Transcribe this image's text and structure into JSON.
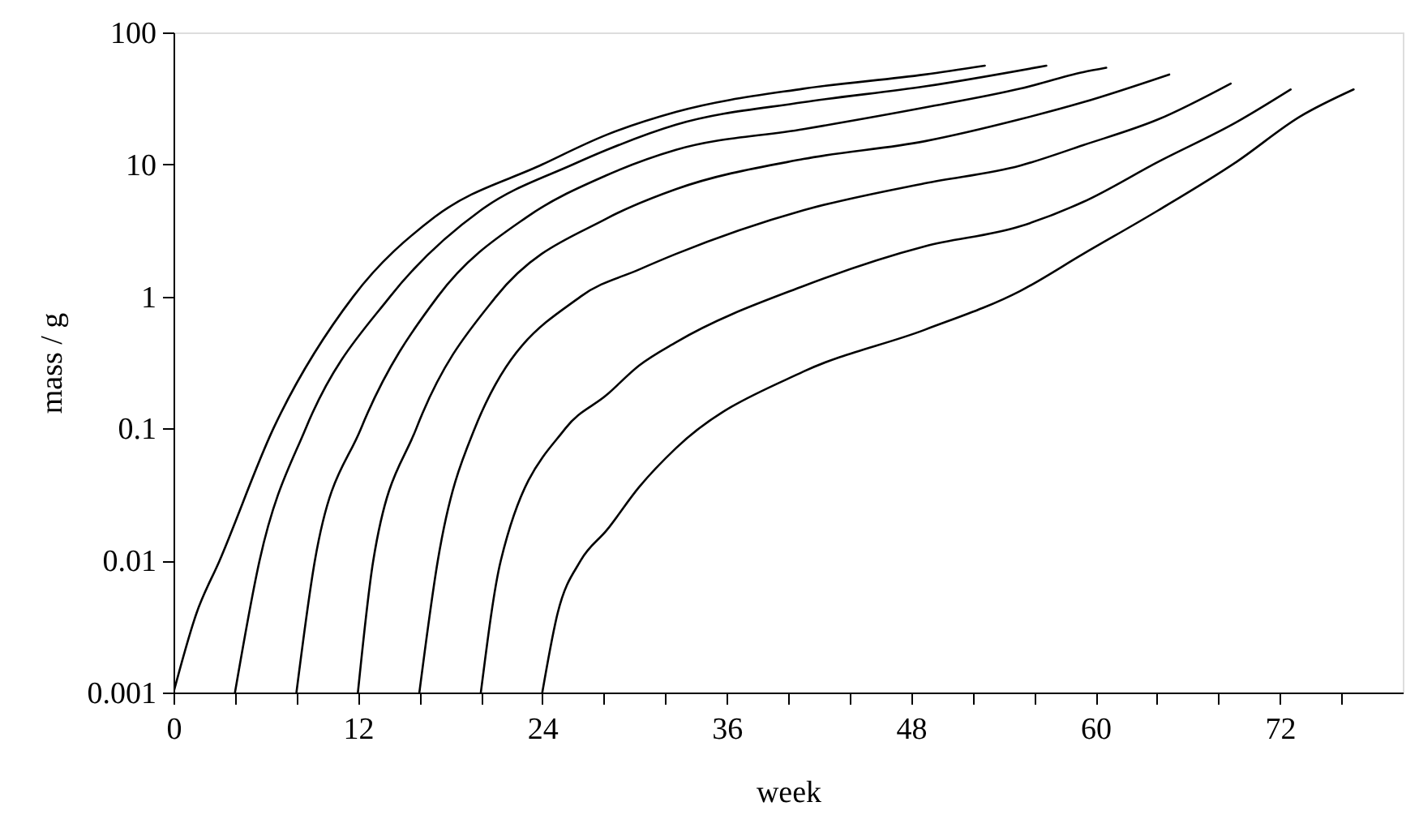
{
  "chart_data": {
    "type": "line",
    "xlabel": "week",
    "ylabel": "mass / g",
    "log": "y",
    "grid": false,
    "legend": false,
    "marker": "none",
    "line_style": "solid",
    "xlim": [
      0,
      80
    ],
    "ylim": [
      0.001,
      100
    ],
    "xticks": [
      0,
      {
        "value": 4,
        "label": null
      },
      {
        "value": 8,
        "label": null
      },
      12,
      {
        "value": 16,
        "label": null
      },
      {
        "value": 20,
        "label": null
      },
      24,
      {
        "value": 28,
        "label": null
      },
      {
        "value": 32,
        "label": null
      },
      36,
      {
        "value": 40,
        "label": null
      },
      {
        "value": 44,
        "label": null
      },
      48,
      {
        "value": 52,
        "label": null
      },
      {
        "value": 56,
        "label": null
      },
      60,
      {
        "value": 64,
        "label": null
      },
      {
        "value": 68,
        "label": null
      },
      72,
      {
        "value": 76,
        "label": null
      }
    ],
    "yticks": [
      0.001,
      0.01,
      0.1,
      1,
      10,
      100
    ],
    "series": [
      {
        "color": "#000000",
        "x": [
          0,
          1.5,
          3,
          6.5,
          11.7,
          17,
          24,
          28.2,
          32.7,
          41,
          48.9,
          52.8
        ],
        "values": [
          0.001,
          0.004,
          0.01,
          0.1,
          1,
          4,
          10,
          16.8,
          25,
          37.5,
          48,
          56
        ]
      },
      {
        "color": "#000000",
        "x": [
          4,
          5.6,
          8.6,
          14.1,
          20,
          26,
          28.2,
          32.7,
          41,
          48.9,
          56.8
        ],
        "values": [
          0.001,
          0.01,
          0.1,
          1,
          4.5,
          10,
          12.9,
          20,
          29.6,
          39,
          56
        ]
      },
      {
        "color": "#000000",
        "x": [
          8,
          9.2,
          12.2,
          17.2,
          23,
          28.2,
          32.7,
          41,
          48.9,
          55.1,
          59.2,
          60.7
        ],
        "values": [
          0.001,
          0.01,
          0.1,
          1,
          4,
          8.3,
          12.9,
          18.5,
          27,
          37.5,
          50,
          54
        ]
      },
      {
        "color": "#000000",
        "x": [
          12,
          13,
          15.8,
          21,
          28.2,
          32.7,
          41,
          48.9,
          55.1,
          59.2,
          64.8
        ],
        "values": [
          0.001,
          0.01,
          0.1,
          1,
          3.9,
          6.5,
          11,
          15,
          22,
          29.6,
          48
        ]
      },
      {
        "color": "#000000",
        "x": [
          16,
          17.2,
          19.6,
          26.5,
          30.3,
          32.7,
          41,
          48.9,
          55.1,
          59.2,
          64.1,
          68.8
        ],
        "values": [
          0.001,
          0.01,
          0.1,
          1,
          1.6,
          2.1,
          4.5,
          7.2,
          9.8,
          14,
          22,
          41
        ]
      },
      {
        "color": "#000000",
        "x": [
          20,
          21.3,
          25.5,
          28.2,
          30.3,
          32.7,
          41,
          48.9,
          55.1,
          59.2,
          64.1,
          69.2,
          72.7
        ],
        "values": [
          0.001,
          0.01,
          0.1,
          0.18,
          0.3,
          0.45,
          1.2,
          2.4,
          3.4,
          5.2,
          10.5,
          21,
          37
        ]
      },
      {
        "color": "#000000",
        "x": [
          24,
          25,
          26.5,
          28.2,
          30.3,
          32.7,
          41,
          48.9,
          55.1,
          59.2,
          64.1,
          69.2,
          73.3,
          76.8
        ],
        "values": [
          0.001,
          0.004,
          0.01,
          0.017,
          0.036,
          0.071,
          0.27,
          0.56,
          1.1,
          2.1,
          4.5,
          10.5,
          23,
          37
        ]
      }
    ]
  }
}
